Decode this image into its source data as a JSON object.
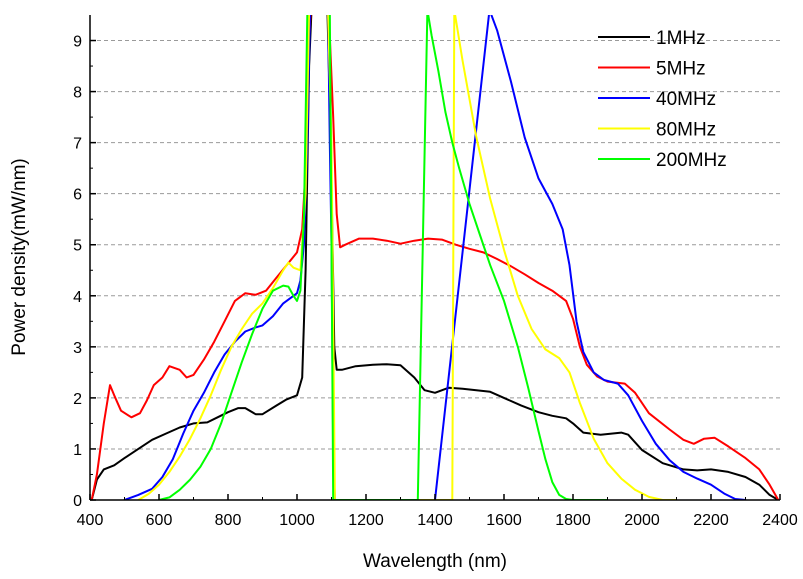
{
  "chart_data": {
    "type": "line",
    "xlabel": "Wavelength (nm)",
    "ylabel": "Power density(mW/nm)",
    "xlim": [
      400,
      2400
    ],
    "ylim": [
      0,
      9.5
    ],
    "xticks": [
      400,
      600,
      800,
      1000,
      1200,
      1400,
      1600,
      1800,
      2000,
      2200,
      2400
    ],
    "yticks": [
      0,
      1,
      2,
      3,
      4,
      5,
      6,
      7,
      8,
      9
    ],
    "grid": "horizontal dashed",
    "legend_position": "top-right",
    "series": [
      {
        "name": "1MHz",
        "color": "#000000",
        "points": [
          [
            405,
            0
          ],
          [
            420,
            0.4
          ],
          [
            440,
            0.6
          ],
          [
            470,
            0.68
          ],
          [
            500,
            0.82
          ],
          [
            540,
            1.0
          ],
          [
            580,
            1.18
          ],
          [
            620,
            1.3
          ],
          [
            660,
            1.42
          ],
          [
            700,
            1.5
          ],
          [
            740,
            1.52
          ],
          [
            770,
            1.62
          ],
          [
            800,
            1.72
          ],
          [
            830,
            1.8
          ],
          [
            850,
            1.8
          ],
          [
            880,
            1.68
          ],
          [
            900,
            1.68
          ],
          [
            940,
            1.85
          ],
          [
            970,
            1.97
          ],
          [
            1000,
            2.05
          ],
          [
            1015,
            2.4
          ],
          [
            1025,
            4.5
          ],
          [
            1035,
            8.5
          ],
          [
            1042,
            9.6
          ],
          [
            1088,
            9.6
          ],
          [
            1098,
            7.0
          ],
          [
            1108,
            3.0
          ],
          [
            1115,
            2.55
          ],
          [
            1130,
            2.55
          ],
          [
            1170,
            2.62
          ],
          [
            1220,
            2.65
          ],
          [
            1260,
            2.66
          ],
          [
            1300,
            2.64
          ],
          [
            1340,
            2.4
          ],
          [
            1370,
            2.15
          ],
          [
            1400,
            2.1
          ],
          [
            1440,
            2.2
          ],
          [
            1480,
            2.18
          ],
          [
            1520,
            2.15
          ],
          [
            1560,
            2.12
          ],
          [
            1600,
            2.0
          ],
          [
            1650,
            1.85
          ],
          [
            1700,
            1.72
          ],
          [
            1740,
            1.65
          ],
          [
            1780,
            1.6
          ],
          [
            1800,
            1.5
          ],
          [
            1830,
            1.32
          ],
          [
            1880,
            1.28
          ],
          [
            1940,
            1.32
          ],
          [
            1960,
            1.28
          ],
          [
            2000,
            0.98
          ],
          [
            2060,
            0.72
          ],
          [
            2120,
            0.6
          ],
          [
            2160,
            0.58
          ],
          [
            2200,
            0.6
          ],
          [
            2250,
            0.55
          ],
          [
            2300,
            0.45
          ],
          [
            2340,
            0.3
          ],
          [
            2370,
            0.1
          ],
          [
            2395,
            0
          ]
        ]
      },
      {
        "name": "5MHz",
        "color": "#ff0000",
        "points": [
          [
            405,
            0
          ],
          [
            420,
            0.5
          ],
          [
            440,
            1.5
          ],
          [
            458,
            2.25
          ],
          [
            470,
            2.05
          ],
          [
            490,
            1.75
          ],
          [
            520,
            1.62
          ],
          [
            545,
            1.7
          ],
          [
            565,
            1.95
          ],
          [
            585,
            2.25
          ],
          [
            610,
            2.4
          ],
          [
            630,
            2.62
          ],
          [
            660,
            2.55
          ],
          [
            680,
            2.4
          ],
          [
            700,
            2.45
          ],
          [
            730,
            2.75
          ],
          [
            760,
            3.1
          ],
          [
            790,
            3.5
          ],
          [
            820,
            3.9
          ],
          [
            850,
            4.05
          ],
          [
            880,
            4.02
          ],
          [
            910,
            4.1
          ],
          [
            940,
            4.35
          ],
          [
            970,
            4.6
          ],
          [
            1000,
            4.85
          ],
          [
            1015,
            5.3
          ],
          [
            1025,
            6.5
          ],
          [
            1035,
            9.0
          ],
          [
            1040,
            9.6
          ],
          [
            1092,
            9.6
          ],
          [
            1105,
            7.5
          ],
          [
            1115,
            5.6
          ],
          [
            1125,
            4.95
          ],
          [
            1140,
            5.0
          ],
          [
            1180,
            5.12
          ],
          [
            1220,
            5.12
          ],
          [
            1260,
            5.08
          ],
          [
            1300,
            5.02
          ],
          [
            1340,
            5.08
          ],
          [
            1380,
            5.12
          ],
          [
            1420,
            5.1
          ],
          [
            1460,
            5.0
          ],
          [
            1500,
            4.92
          ],
          [
            1540,
            4.85
          ],
          [
            1580,
            4.72
          ],
          [
            1620,
            4.58
          ],
          [
            1660,
            4.42
          ],
          [
            1700,
            4.25
          ],
          [
            1740,
            4.1
          ],
          [
            1780,
            3.9
          ],
          [
            1800,
            3.55
          ],
          [
            1820,
            3.0
          ],
          [
            1840,
            2.65
          ],
          [
            1870,
            2.42
          ],
          [
            1900,
            2.32
          ],
          [
            1950,
            2.28
          ],
          [
            1980,
            2.1
          ],
          [
            2020,
            1.7
          ],
          [
            2080,
            1.38
          ],
          [
            2120,
            1.18
          ],
          [
            2150,
            1.1
          ],
          [
            2180,
            1.2
          ],
          [
            2210,
            1.22
          ],
          [
            2250,
            1.05
          ],
          [
            2300,
            0.82
          ],
          [
            2340,
            0.6
          ],
          [
            2370,
            0.3
          ],
          [
            2395,
            0
          ]
        ]
      },
      {
        "name": "40MHz",
        "color": "#0000ff",
        "points": [
          [
            500,
            0
          ],
          [
            540,
            0.1
          ],
          [
            580,
            0.22
          ],
          [
            610,
            0.45
          ],
          [
            640,
            0.8
          ],
          [
            670,
            1.3
          ],
          [
            700,
            1.75
          ],
          [
            730,
            2.1
          ],
          [
            760,
            2.5
          ],
          [
            790,
            2.85
          ],
          [
            820,
            3.1
          ],
          [
            850,
            3.3
          ],
          [
            880,
            3.38
          ],
          [
            900,
            3.42
          ],
          [
            930,
            3.6
          ],
          [
            960,
            3.85
          ],
          [
            990,
            4.0
          ],
          [
            1000,
            4.05
          ],
          [
            1010,
            4.3
          ],
          [
            1020,
            5.0
          ],
          [
            1030,
            7.0
          ],
          [
            1038,
            9.6
          ],
          [
            1090,
            9.6
          ],
          [
            1095,
            7.0
          ],
          [
            1100,
            5.0
          ],
          [
            1105,
            1.0
          ],
          [
            1110,
            0
          ],
          [
            1120,
            0
          ],
          [
            1400,
            0
          ],
          [
            1558,
            9.6
          ],
          [
            1580,
            9.2
          ],
          [
            1620,
            8.2
          ],
          [
            1660,
            7.1
          ],
          [
            1700,
            6.3
          ],
          [
            1740,
            5.8
          ],
          [
            1770,
            5.3
          ],
          [
            1790,
            4.6
          ],
          [
            1810,
            3.5
          ],
          [
            1830,
            2.9
          ],
          [
            1860,
            2.5
          ],
          [
            1890,
            2.35
          ],
          [
            1930,
            2.28
          ],
          [
            1960,
            2.05
          ],
          [
            2000,
            1.55
          ],
          [
            2040,
            1.1
          ],
          [
            2080,
            0.78
          ],
          [
            2120,
            0.55
          ],
          [
            2160,
            0.42
          ],
          [
            2200,
            0.3
          ],
          [
            2240,
            0.12
          ],
          [
            2270,
            0.02
          ],
          [
            2300,
            0
          ]
        ]
      },
      {
        "name": "80MHz",
        "color": "#ffff00",
        "points": [
          [
            540,
            0
          ],
          [
            570,
            0.12
          ],
          [
            600,
            0.3
          ],
          [
            630,
            0.55
          ],
          [
            660,
            0.85
          ],
          [
            690,
            1.2
          ],
          [
            720,
            1.6
          ],
          [
            750,
            2.05
          ],
          [
            780,
            2.55
          ],
          [
            810,
            3.0
          ],
          [
            840,
            3.35
          ],
          [
            870,
            3.65
          ],
          [
            900,
            3.85
          ],
          [
            930,
            4.15
          ],
          [
            960,
            4.5
          ],
          [
            975,
            4.65
          ],
          [
            990,
            4.55
          ],
          [
            1010,
            4.5
          ],
          [
            1025,
            6.0
          ],
          [
            1035,
            9.6
          ],
          [
            1090,
            9.6
          ],
          [
            1100,
            7.0
          ],
          [
            1110,
            0
          ],
          [
            1450,
            0
          ],
          [
            1456,
            9.6
          ],
          [
            1480,
            8.6
          ],
          [
            1520,
            7.1
          ],
          [
            1560,
            5.9
          ],
          [
            1600,
            4.9
          ],
          [
            1640,
            4.0
          ],
          [
            1680,
            3.35
          ],
          [
            1720,
            2.95
          ],
          [
            1760,
            2.78
          ],
          [
            1790,
            2.5
          ],
          [
            1820,
            1.9
          ],
          [
            1860,
            1.2
          ],
          [
            1900,
            0.72
          ],
          [
            1940,
            0.42
          ],
          [
            1980,
            0.2
          ],
          [
            2020,
            0.06
          ],
          [
            2060,
            0
          ],
          [
            2100,
            0
          ]
        ]
      },
      {
        "name": "200MHz",
        "color": "#00ff00",
        "points": [
          [
            600,
            0
          ],
          [
            630,
            0.05
          ],
          [
            660,
            0.2
          ],
          [
            690,
            0.4
          ],
          [
            720,
            0.65
          ],
          [
            750,
            1.0
          ],
          [
            780,
            1.5
          ],
          [
            810,
            2.1
          ],
          [
            840,
            2.7
          ],
          [
            870,
            3.25
          ],
          [
            900,
            3.75
          ],
          [
            930,
            4.1
          ],
          [
            960,
            4.2
          ],
          [
            975,
            4.18
          ],
          [
            990,
            4.0
          ],
          [
            1000,
            3.9
          ],
          [
            1010,
            4.1
          ],
          [
            1020,
            5.5
          ],
          [
            1030,
            9.6
          ],
          [
            1095,
            9.6
          ],
          [
            1100,
            5.0
          ],
          [
            1105,
            0
          ],
          [
            1350,
            0
          ],
          [
            1378,
            9.6
          ],
          [
            1390,
            9.1
          ],
          [
            1410,
            8.4
          ],
          [
            1430,
            7.6
          ],
          [
            1450,
            7.0
          ],
          [
            1470,
            6.5
          ],
          [
            1500,
            5.8
          ],
          [
            1530,
            5.2
          ],
          [
            1560,
            4.6
          ],
          [
            1600,
            3.9
          ],
          [
            1640,
            3.0
          ],
          [
            1670,
            2.2
          ],
          [
            1700,
            1.35
          ],
          [
            1720,
            0.8
          ],
          [
            1740,
            0.35
          ],
          [
            1760,
            0.1
          ],
          [
            1780,
            0.02
          ],
          [
            1800,
            0
          ],
          [
            1900,
            0
          ]
        ]
      }
    ]
  }
}
